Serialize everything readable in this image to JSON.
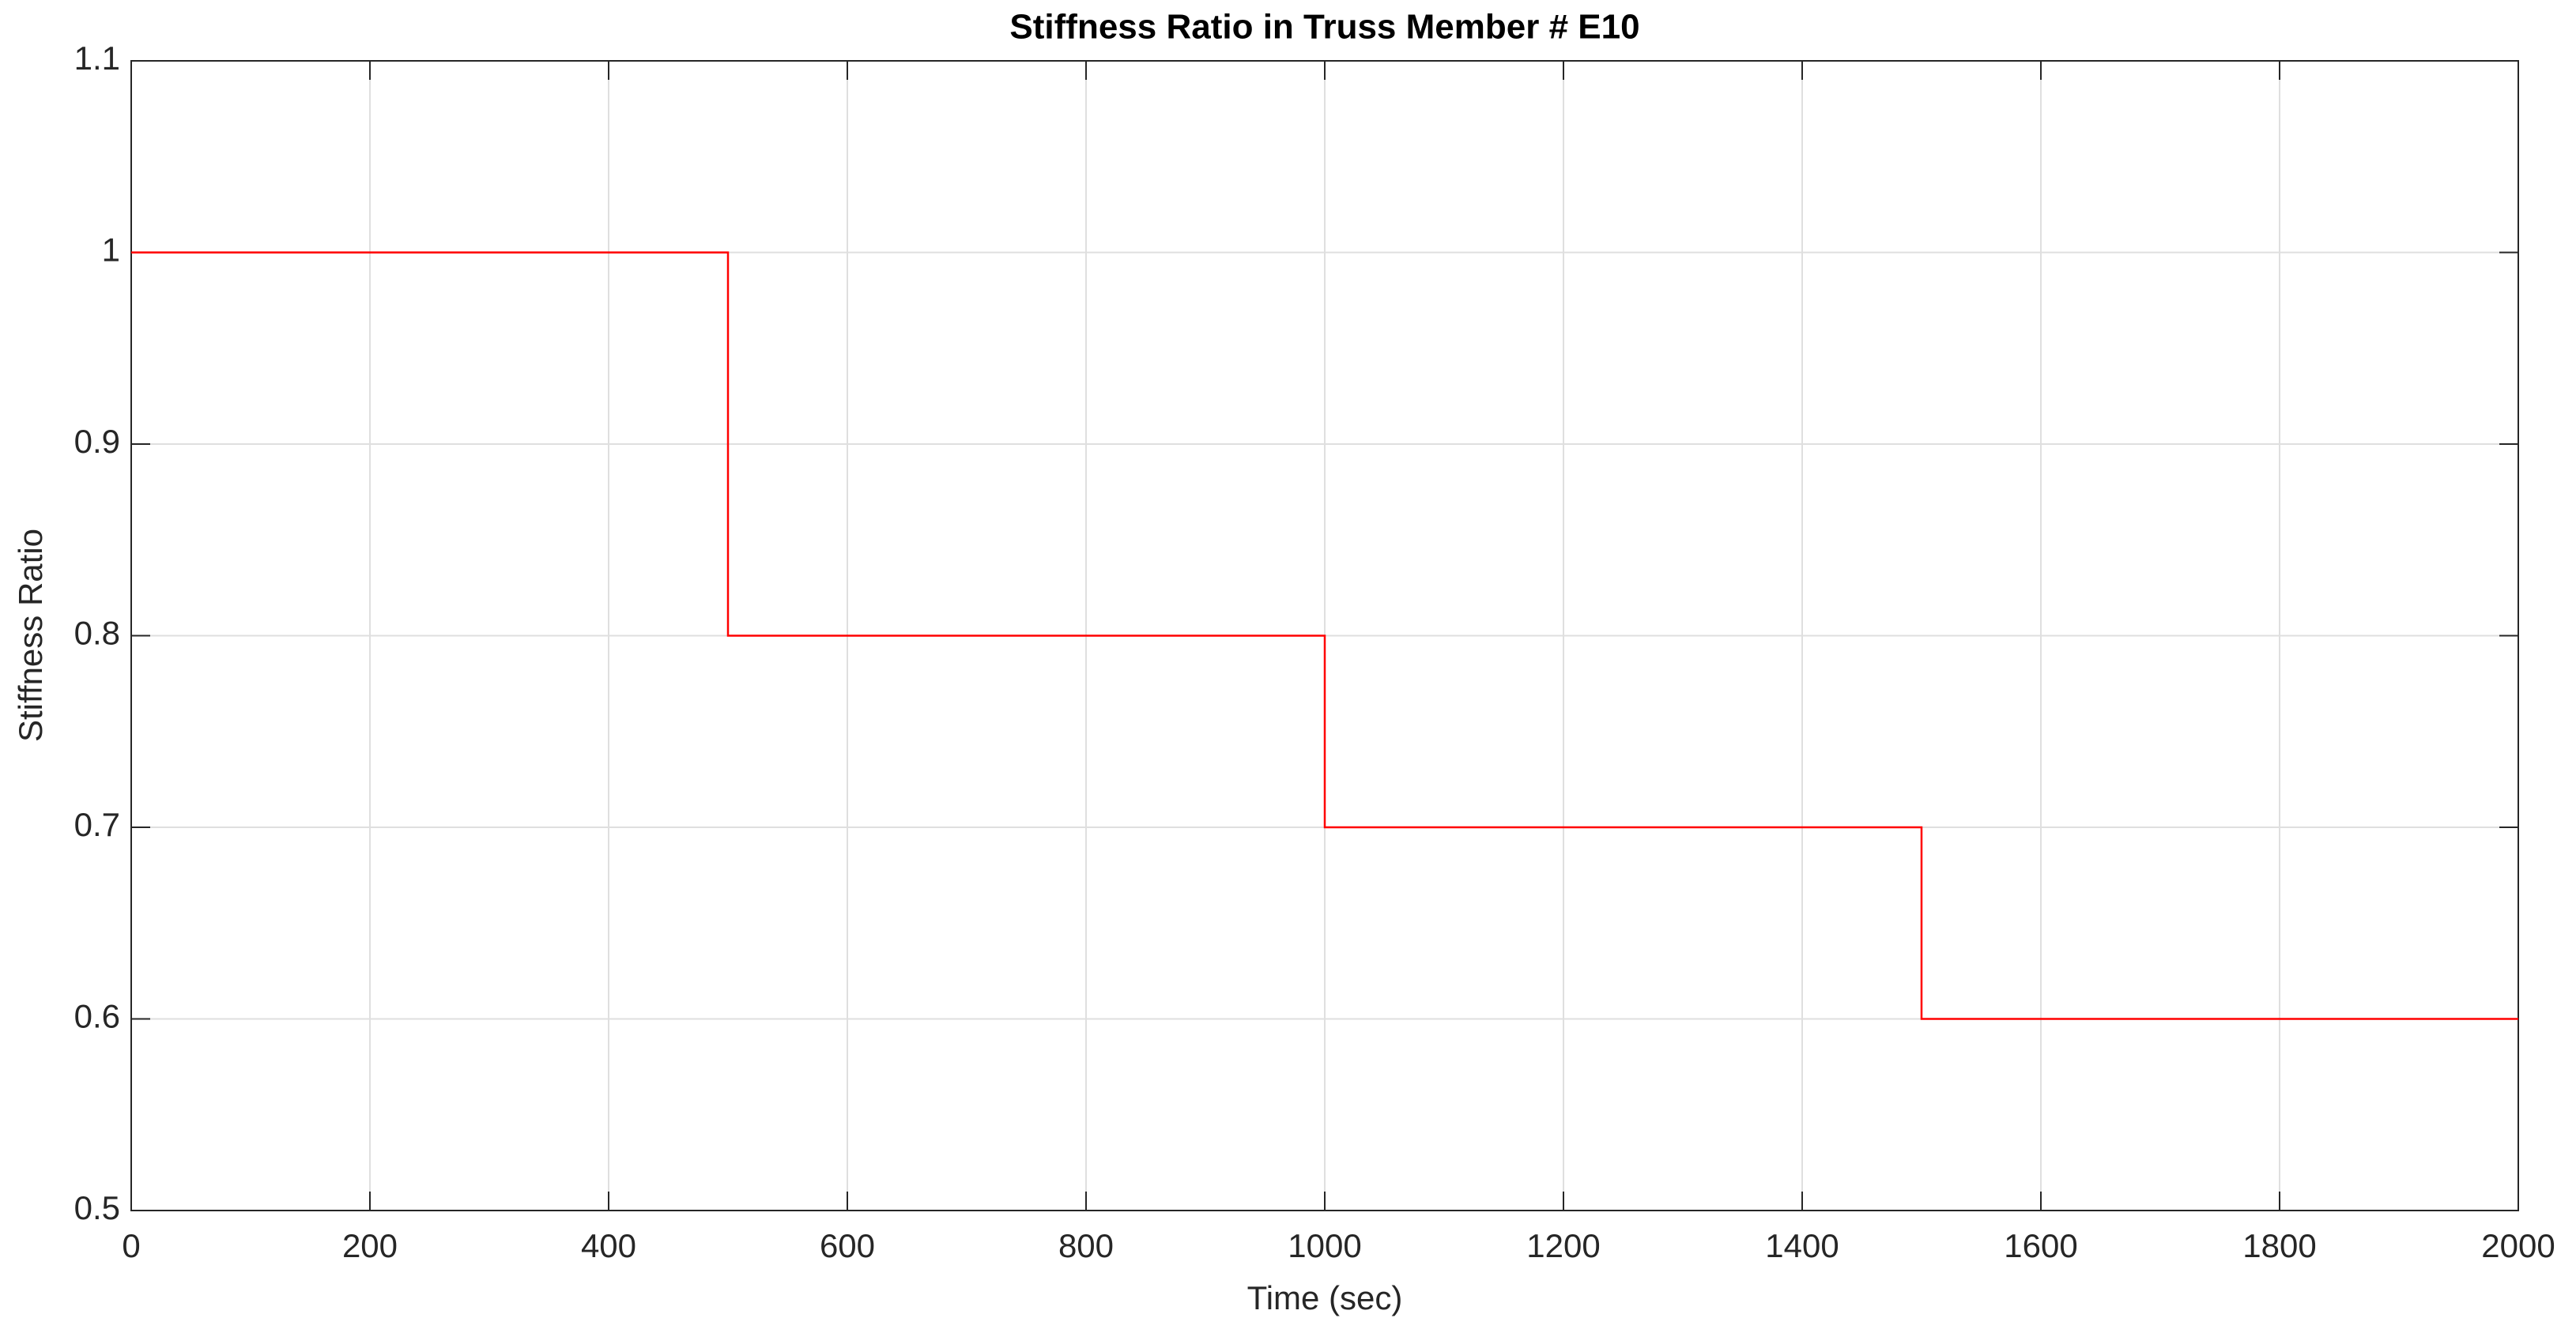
{
  "chart_data": {
    "type": "line",
    "title": "Stiffness Ratio in Truss Member # E10",
    "xlabel": "Time (sec)",
    "ylabel": "Stiffness Ratio",
    "x": [
      0,
      500,
      500,
      1000,
      1000,
      1500,
      1500,
      2000
    ],
    "series": [
      {
        "color": "#ff0000",
        "values": [
          1,
          1,
          0.8,
          0.8,
          0.7,
          0.7,
          0.6,
          0.6
        ]
      }
    ],
    "xlim": [
      0,
      2000
    ],
    "xticks": [
      0,
      200,
      400,
      600,
      800,
      1000,
      1200,
      1400,
      1600,
      1800,
      2000
    ],
    "ylim": [
      0.5,
      1.1
    ],
    "yticks": [
      0.5,
      0.6,
      0.7,
      0.8,
      0.9,
      1,
      1.1
    ],
    "grid": true
  }
}
